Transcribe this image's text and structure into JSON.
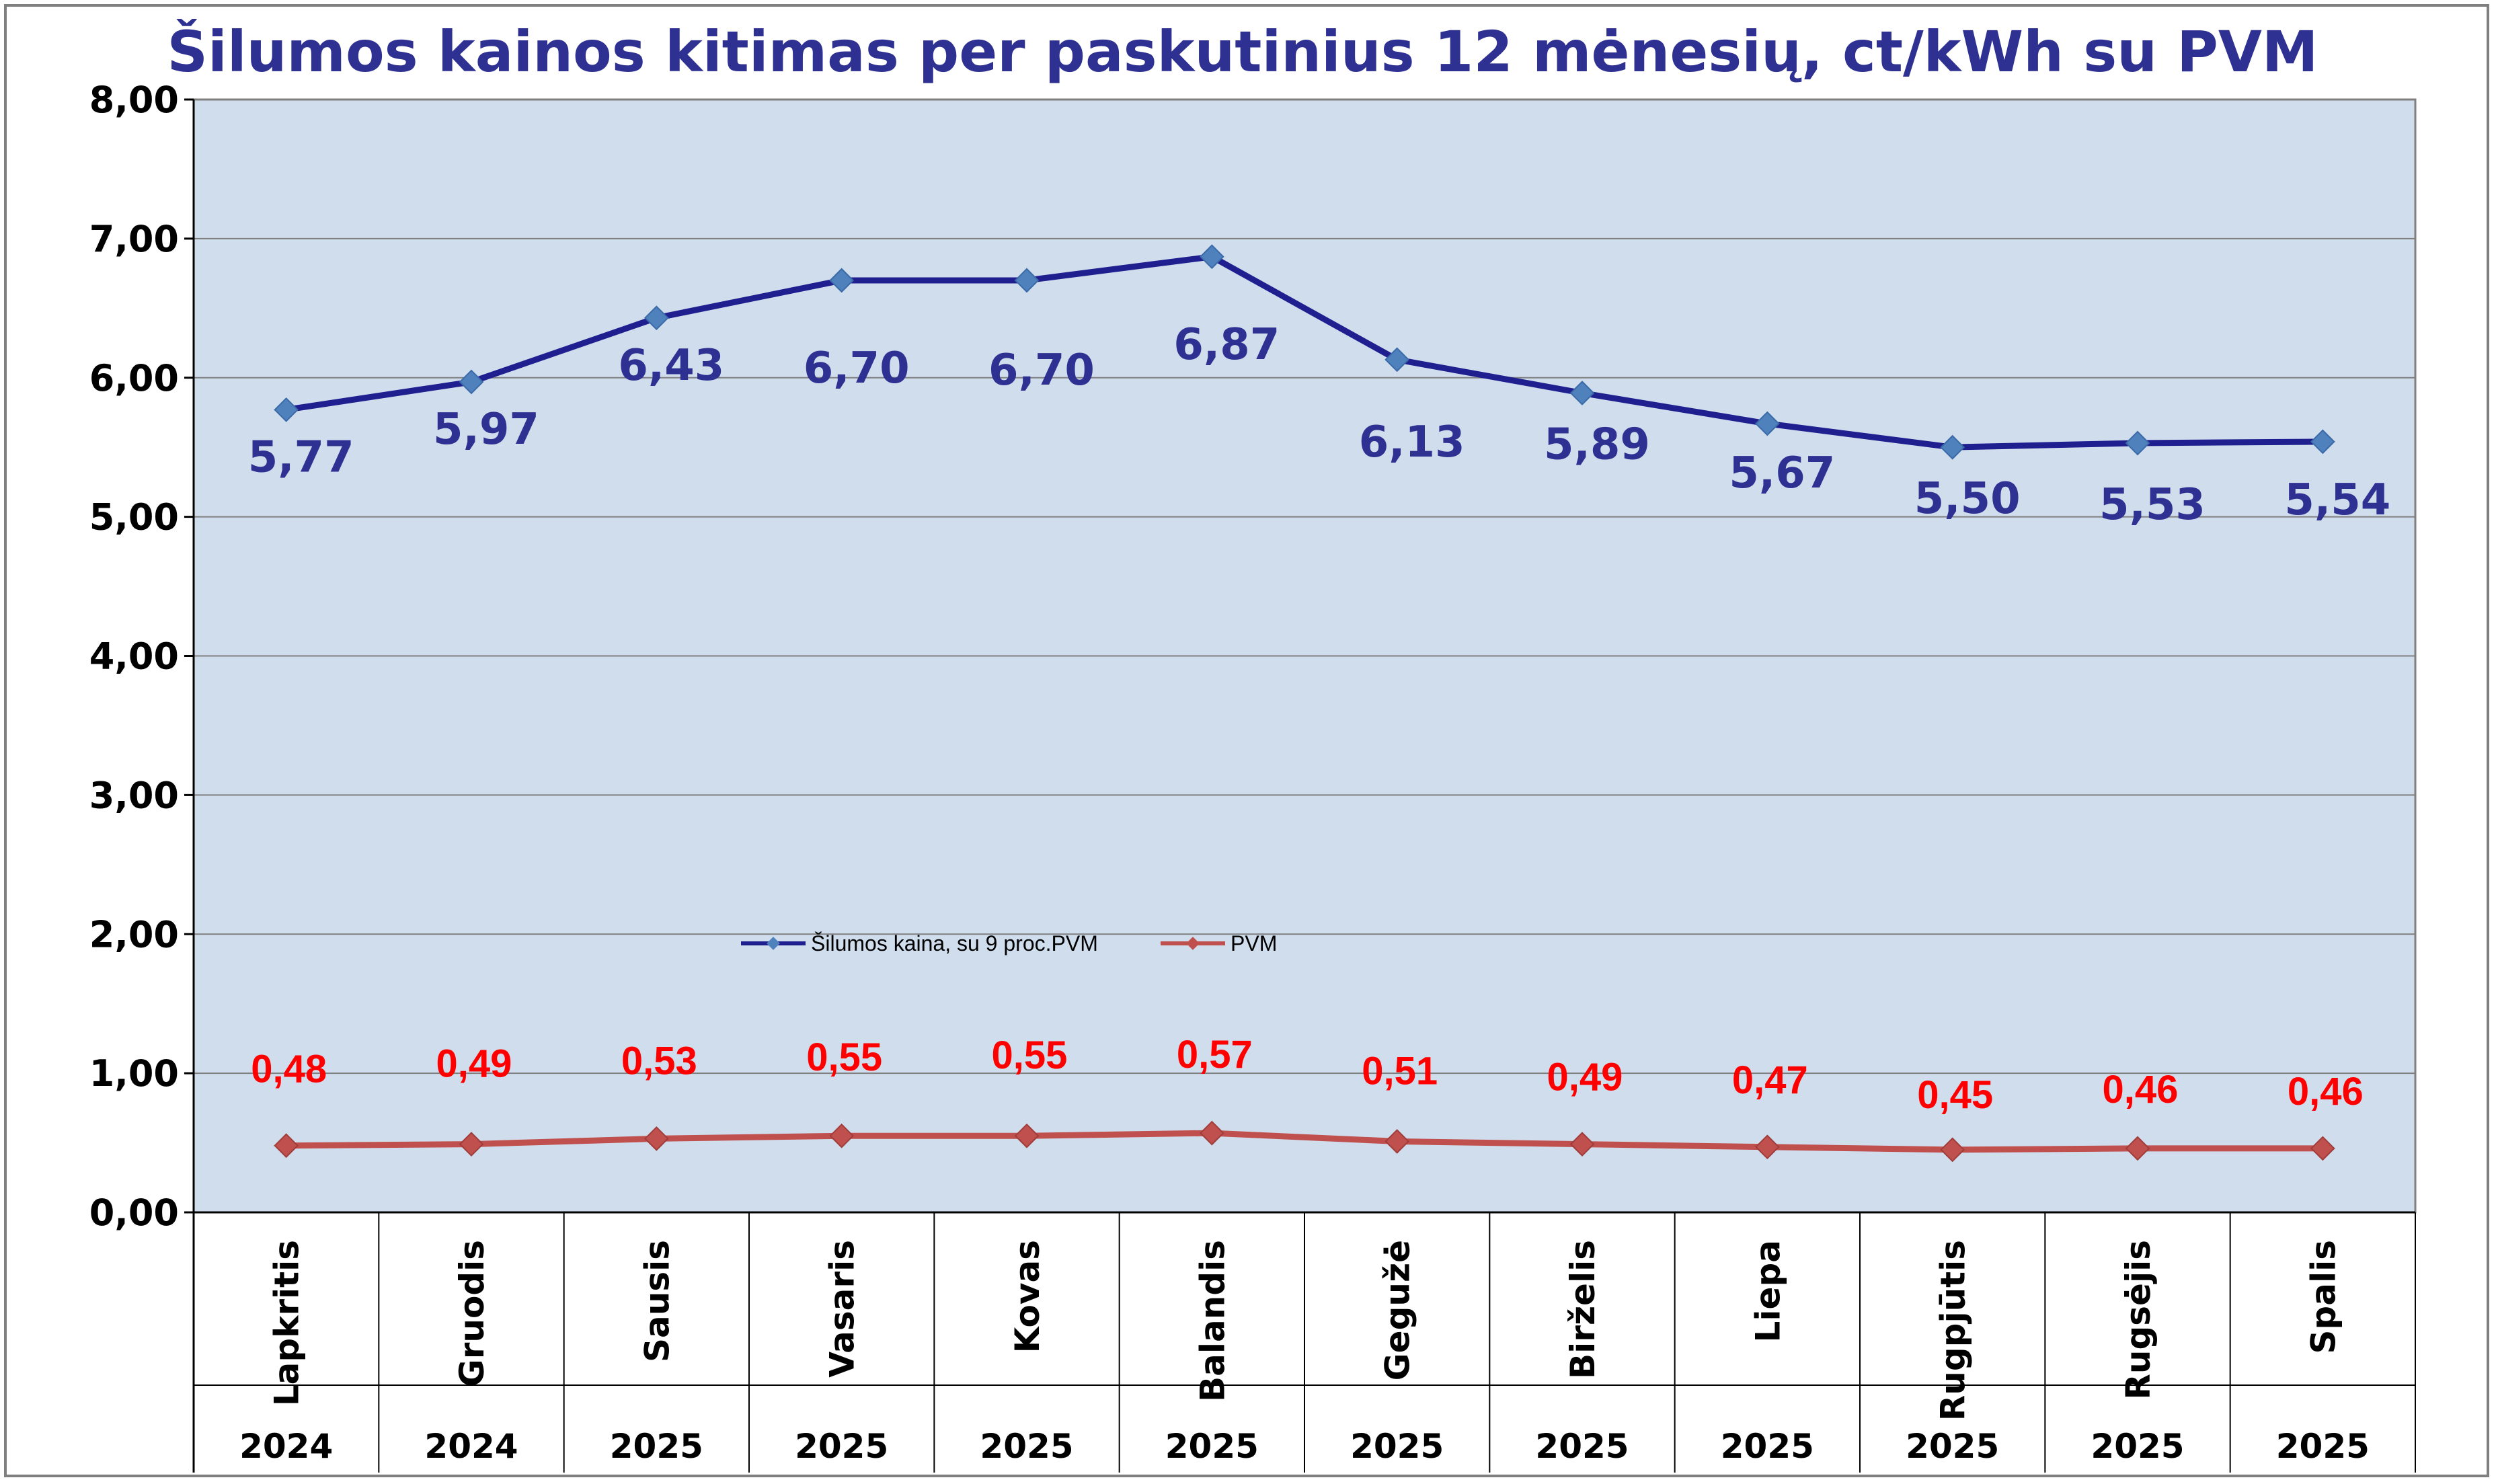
{
  "chart_data": {
    "type": "line",
    "title": "Šilumos kainos kitimas per paskutinius 12 mėnesių, ct/kWh su PVM",
    "categories": [
      "Lapkritis",
      "Gruodis",
      "Sausis",
      "Vasaris",
      "Kovas",
      "Balandis",
      "Gegužė",
      "Birželis",
      "Liepa",
      "Rugpjūtis",
      "Rugsėjis",
      "Spalis"
    ],
    "years": [
      "2024",
      "2024",
      "2025",
      "2025",
      "2025",
      "2025",
      "2025",
      "2025",
      "2025",
      "2025",
      "2025",
      "2025"
    ],
    "ylim": [
      0,
      8
    ],
    "yticks": [
      "0,00",
      "1,00",
      "2,00",
      "3,00",
      "4,00",
      "5,00",
      "6,00",
      "7,00",
      "8,00"
    ],
    "grid": true,
    "legend_position": "center",
    "series": [
      {
        "name": "Šilumos kaina, su 9 proc.PVM",
        "values": [
          5.77,
          5.97,
          6.43,
          6.7,
          6.7,
          6.87,
          6.13,
          5.89,
          5.67,
          5.5,
          5.53,
          5.54
        ],
        "labels": [
          "5,77",
          "5,97",
          "6,43",
          "6,70",
          "6,70",
          "6,87",
          "6,13",
          "5,89",
          "5,67",
          "5,50",
          "5,53",
          "5,54"
        ],
        "color": "#1f1f8f",
        "marker_color": "#4f81bd"
      },
      {
        "name": "PVM",
        "values": [
          0.48,
          0.49,
          0.53,
          0.55,
          0.55,
          0.57,
          0.51,
          0.49,
          0.47,
          0.45,
          0.46,
          0.46
        ],
        "labels": [
          "0,48",
          "0,49",
          "0,53",
          "0,55",
          "0,55",
          "0,57",
          "0,51",
          "0,49",
          "0,47",
          "0,45",
          "0,46",
          "0,46"
        ],
        "color": "#c0504d",
        "marker_color": "#c0504d"
      }
    ]
  },
  "colors": {
    "plot_background": "#d0dded",
    "gridline": "#7f7f7f",
    "title": "#2e3192",
    "pvm_label": "#ff0000"
  }
}
